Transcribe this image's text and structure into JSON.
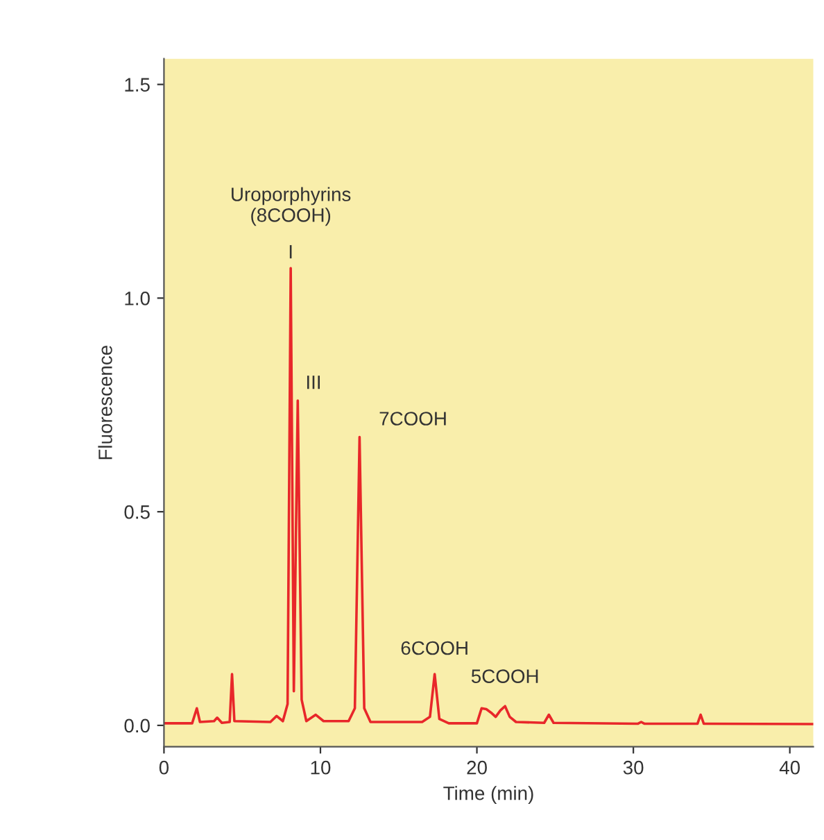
{
  "chart_data": {
    "type": "line",
    "xlabel": "Time (min)",
    "ylabel": "Fluorescence",
    "x": [
      0,
      1.8,
      2.1,
      2.3,
      3.2,
      3.4,
      3.7,
      4.2,
      4.35,
      4.5,
      6.8,
      7.2,
      7.6,
      7.9,
      8.1,
      8.3,
      8.55,
      8.8,
      9.1,
      9.7,
      10.2,
      11.8,
      12.2,
      12.5,
      12.8,
      13.2,
      16.5,
      17.0,
      17.3,
      17.6,
      18.2,
      20.0,
      20.3,
      20.6,
      20.9,
      21.2,
      21.5,
      21.8,
      22.1,
      22.5,
      24.3,
      24.6,
      24.9,
      30.3,
      30.5,
      30.7,
      34.1,
      34.3,
      34.5,
      41.5
    ],
    "series": [
      {
        "color": "#e8272a",
        "values": [
          0.005,
          0.005,
          0.04,
          0.008,
          0.01,
          0.018,
          0.006,
          0.008,
          0.12,
          0.01,
          0.008,
          0.022,
          0.01,
          0.05,
          1.07,
          0.08,
          0.76,
          0.06,
          0.01,
          0.025,
          0.01,
          0.01,
          0.04,
          0.675,
          0.04,
          0.008,
          0.008,
          0.02,
          0.12,
          0.015,
          0.005,
          0.005,
          0.04,
          0.038,
          0.03,
          0.02,
          0.035,
          0.045,
          0.02,
          0.008,
          0.006,
          0.025,
          0.006,
          0.004,
          0.008,
          0.004,
          0.004,
          0.025,
          0.004,
          0.003
        ]
      }
    ],
    "xlim": [
      0,
      41.5
    ],
    "xticks": [
      0,
      10,
      20,
      30,
      40
    ],
    "ylim": [
      -0.05,
      1.56
    ],
    "yticks": [
      {
        "value": 0,
        "label": "0.0"
      },
      {
        "value": 0.5,
        "label": "0.5"
      },
      {
        "value": 1,
        "label": "1.0"
      },
      {
        "value": 1.5,
        "label": "1.5"
      }
    ],
    "annotations": [
      {
        "text": "Uroporphyrins\n(8COOH)",
        "x": 8.1,
        "y": 1.07
      },
      {
        "text": "I",
        "x": 8.1,
        "y": 1.07
      },
      {
        "text": "III",
        "x": 8.55,
        "y": 0.76
      },
      {
        "text": "7COOH",
        "x": 12.5,
        "y": 0.675
      },
      {
        "text": "6COOH",
        "x": 17.3,
        "y": 0.12
      },
      {
        "text": "5COOH",
        "x": 21.8,
        "y": 0.045
      }
    ],
    "grid": false,
    "legend": false,
    "marker": "none",
    "line_style": "solid"
  }
}
